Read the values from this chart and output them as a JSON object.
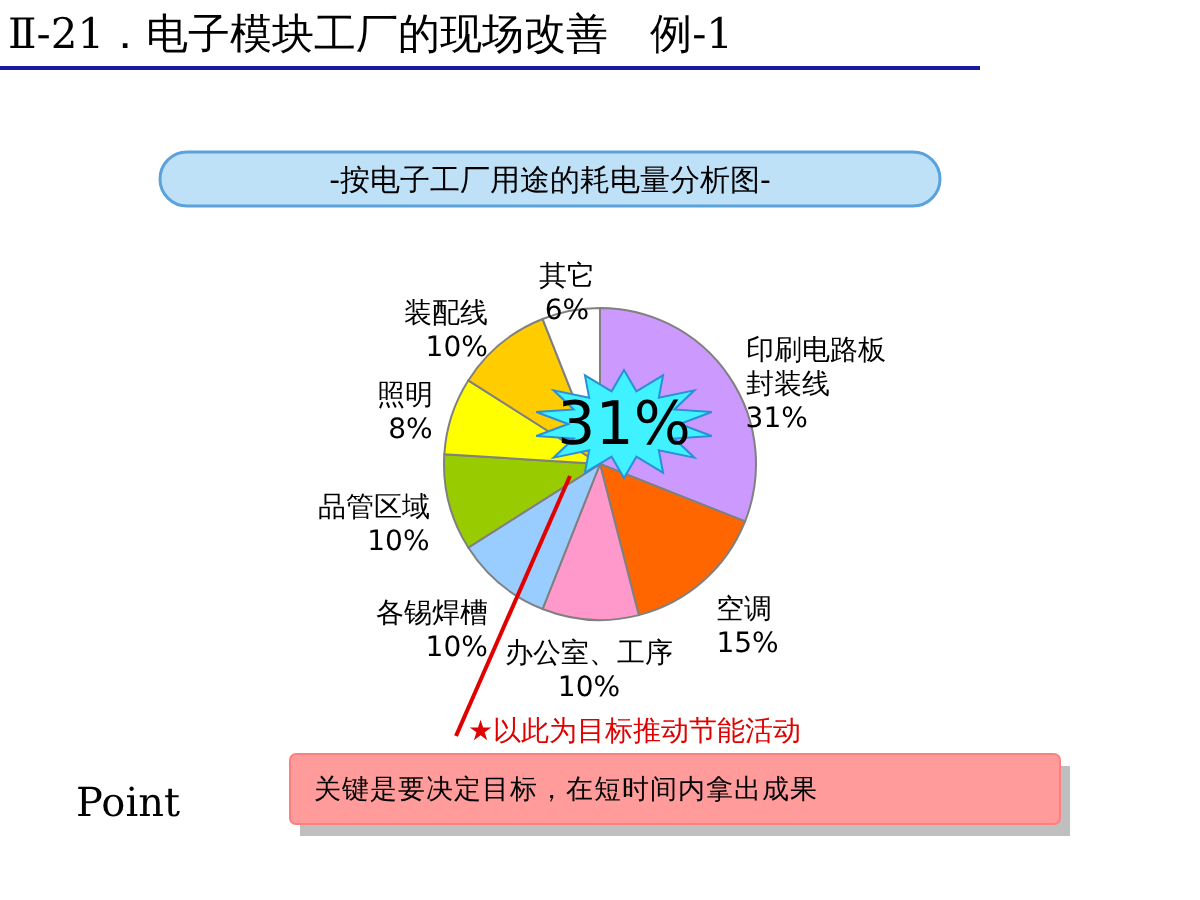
{
  "chart_data": {
    "type": "pie",
    "title": "Ⅱ-21．电子模块工厂的现场改善　例-1",
    "subtitle": "-按电子工厂用途的耗电量分析图-",
    "categories": [
      "印刷电路板封装线",
      "空调",
      "办公室、工序",
      "各锡焊槽",
      "品管区域",
      "照明",
      "装配线",
      "其它"
    ],
    "values": [
      31,
      15,
      10,
      10,
      10,
      8,
      10,
      6
    ],
    "colors": [
      "#cc99ff",
      "#ff6600",
      "#ff99cc",
      "#99ccff",
      "#99cc00",
      "#ffff00",
      "#ffcc00",
      "#ffffff"
    ],
    "value_labels": [
      "31%",
      "15%",
      "10%",
      "10%",
      "10%",
      "8%",
      "10%",
      "6%"
    ],
    "annotations": [
      "31%",
      "★以此为目标推动节能活动",
      "Point",
      "关键是要决定目标，在短时间内拿出成果"
    ]
  }
}
